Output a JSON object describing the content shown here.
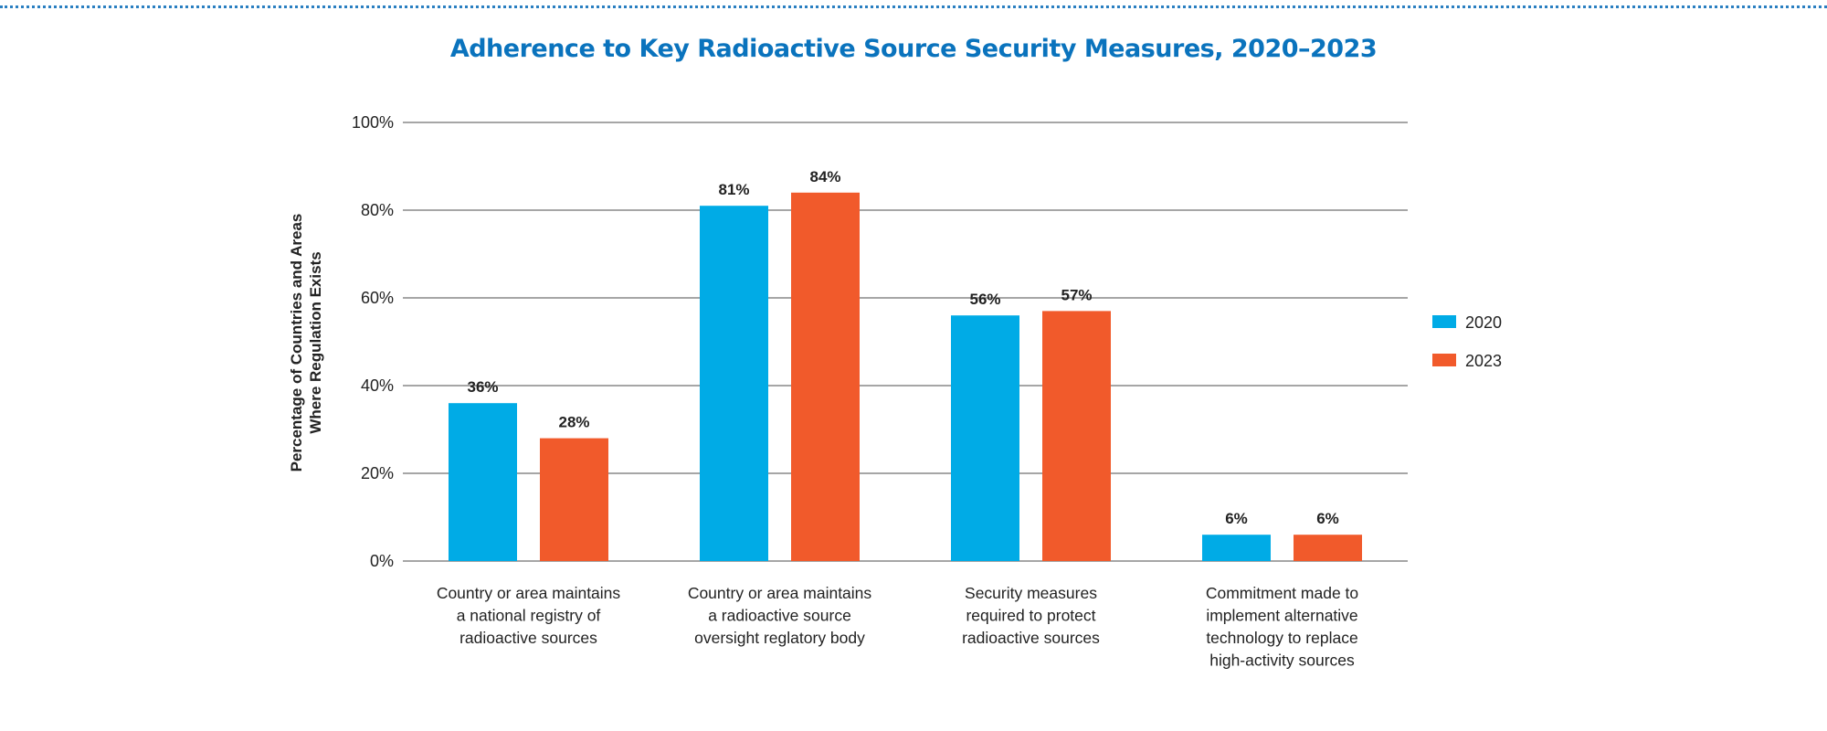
{
  "chart_data": {
    "type": "bar",
    "title": "Adherence to Key Radioactive Source Security Measures, 2020–2023",
    "ylabel": [
      "Percentage of Countries and Areas",
      "Where Regulation Exists"
    ],
    "ylim": [
      0,
      100
    ],
    "yticks": [
      "0%",
      "20%",
      "40%",
      "60%",
      "80%",
      "100%"
    ],
    "grid": true,
    "legend_placement": "right",
    "categories": [
      [
        "Country or area maintains",
        "a national registry of",
        "radioactive sources"
      ],
      [
        "Country or area maintains",
        "a radioactive source",
        "oversight reglatory body"
      ],
      [
        "Security measures",
        "required to protect",
        "radioactive sources"
      ],
      [
        "Commitment made to",
        "implement alternative",
        "technology to replace",
        "high-activity sources"
      ]
    ],
    "series": [
      {
        "name": "2020",
        "color": "#00abe6",
        "values": [
          36,
          81,
          56,
          6
        ],
        "labels": [
          "36%",
          "81%",
          "56%",
          "6%"
        ]
      },
      {
        "name": "2023",
        "color": "#f15a2b",
        "values": [
          28,
          84,
          57,
          6
        ],
        "labels": [
          "28%",
          "84%",
          "57%",
          "6%"
        ]
      }
    ]
  }
}
